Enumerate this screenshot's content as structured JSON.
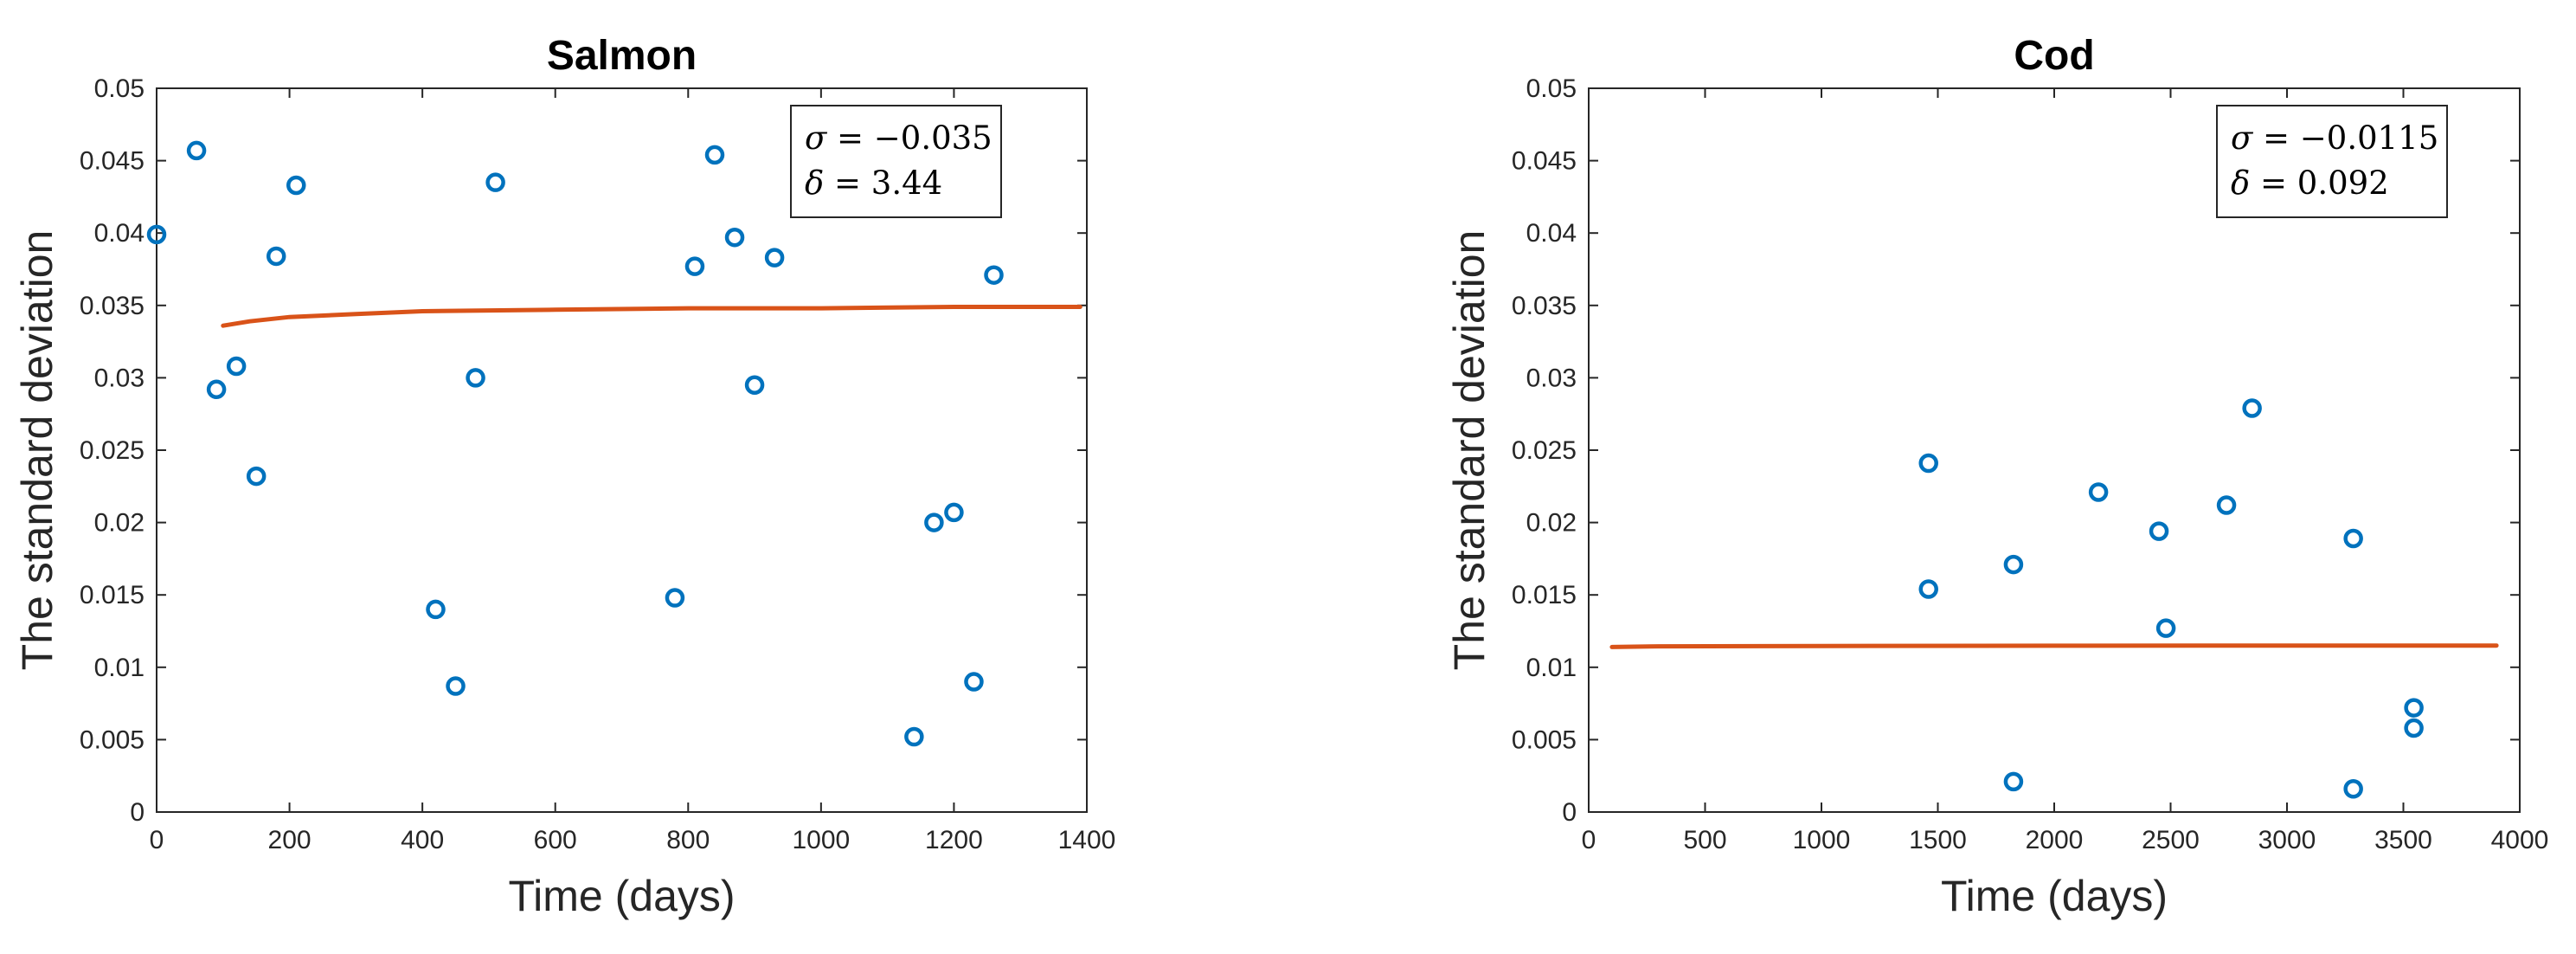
{
  "chart_data": [
    {
      "type": "scatter",
      "title": "Salmon",
      "xlabel": "Time (days)",
      "ylabel": "The standard deviation",
      "xlim": [
        0,
        1400
      ],
      "ylim": [
        0,
        0.05
      ],
      "xticks": [
        0,
        200,
        400,
        600,
        800,
        1000,
        1200,
        1400
      ],
      "yticks": [
        0,
        0.005,
        0.01,
        0.015,
        0.02,
        0.025,
        0.03,
        0.035,
        0.04,
        0.045,
        0.05
      ],
      "xtick_labels": [
        "0",
        "200",
        "400",
        "600",
        "800",
        "1000",
        "1200",
        "1400"
      ],
      "ytick_labels": [
        "0",
        "0.005",
        "0.01",
        "0.015",
        "0.02",
        "0.025",
        "0.03",
        "0.035",
        "0.04",
        "0.045",
        "0.05"
      ],
      "grid": false,
      "points": [
        {
          "x": 0,
          "y": 0.0399
        },
        {
          "x": 60,
          "y": 0.0457
        },
        {
          "x": 90,
          "y": 0.0292
        },
        {
          "x": 120,
          "y": 0.0308
        },
        {
          "x": 150,
          "y": 0.0232
        },
        {
          "x": 180,
          "y": 0.0384
        },
        {
          "x": 210,
          "y": 0.0433
        },
        {
          "x": 420,
          "y": 0.014
        },
        {
          "x": 450,
          "y": 0.0087
        },
        {
          "x": 480,
          "y": 0.03
        },
        {
          "x": 510,
          "y": 0.0435
        },
        {
          "x": 780,
          "y": 0.0148
        },
        {
          "x": 810,
          "y": 0.0377
        },
        {
          "x": 840,
          "y": 0.0454
        },
        {
          "x": 870,
          "y": 0.0397
        },
        {
          "x": 900,
          "y": 0.0295
        },
        {
          "x": 930,
          "y": 0.0383
        },
        {
          "x": 1140,
          "y": 0.0052
        },
        {
          "x": 1170,
          "y": 0.02
        },
        {
          "x": 1200,
          "y": 0.0207
        },
        {
          "x": 1230,
          "y": 0.009
        },
        {
          "x": 1260,
          "y": 0.0371
        }
      ],
      "fit_curve": [
        {
          "x": 100,
          "y": 0.0336
        },
        {
          "x": 140,
          "y": 0.0339
        },
        {
          "x": 200,
          "y": 0.0342
        },
        {
          "x": 300,
          "y": 0.0344
        },
        {
          "x": 400,
          "y": 0.0346
        },
        {
          "x": 600,
          "y": 0.0347
        },
        {
          "x": 800,
          "y": 0.0348
        },
        {
          "x": 1000,
          "y": 0.0348
        },
        {
          "x": 1200,
          "y": 0.0349
        },
        {
          "x": 1390,
          "y": 0.0349
        }
      ],
      "annotation": {
        "line1_sym": "σ",
        "line1_val": " = −0.035",
        "line2_sym": "δ",
        "line2_val": " = 3.44"
      },
      "colors": {
        "points": "#0072BD",
        "fit": "#D95319"
      }
    },
    {
      "type": "scatter",
      "title": "Cod",
      "xlabel": "Time (days)",
      "ylabel": "The standard deviation",
      "xlim": [
        0,
        4000
      ],
      "ylim": [
        0,
        0.05
      ],
      "xticks": [
        0,
        500,
        1000,
        1500,
        2000,
        2500,
        3000,
        3500,
        4000
      ],
      "yticks": [
        0,
        0.005,
        0.01,
        0.015,
        0.02,
        0.025,
        0.03,
        0.035,
        0.04,
        0.045,
        0.05
      ],
      "xtick_labels": [
        "0",
        "500",
        "1000",
        "1500",
        "2000",
        "2500",
        "3000",
        "3500",
        "4000"
      ],
      "ytick_labels": [
        "0",
        "0.005",
        "0.01",
        "0.015",
        "0.02",
        "0.025",
        "0.03",
        "0.035",
        "0.04",
        "0.045",
        "0.05"
      ],
      "grid": false,
      "points": [
        {
          "x": 1460,
          "y": 0.0241
        },
        {
          "x": 1460,
          "y": 0.0154
        },
        {
          "x": 1825,
          "y": 0.0171
        },
        {
          "x": 1825,
          "y": 0.0021
        },
        {
          "x": 2190,
          "y": 0.0221
        },
        {
          "x": 2450,
          "y": 0.0194
        },
        {
          "x": 2480,
          "y": 0.0127
        },
        {
          "x": 2740,
          "y": 0.0212
        },
        {
          "x": 2850,
          "y": 0.0279
        },
        {
          "x": 3285,
          "y": 0.0189
        },
        {
          "x": 3285,
          "y": 0.0016
        },
        {
          "x": 3545,
          "y": 0.0072
        },
        {
          "x": 3545,
          "y": 0.0058
        }
      ],
      "fit_curve": [
        {
          "x": 100,
          "y": 0.0114
        },
        {
          "x": 300,
          "y": 0.01145
        },
        {
          "x": 1000,
          "y": 0.01147
        },
        {
          "x": 2000,
          "y": 0.01149
        },
        {
          "x": 3000,
          "y": 0.0115
        },
        {
          "x": 3900,
          "y": 0.0115
        }
      ],
      "annotation": {
        "line1_sym": "σ",
        "line1_val": " = −0.0115",
        "line2_sym": "δ",
        "line2_val": " = 0.092"
      },
      "colors": {
        "points": "#0072BD",
        "fit": "#D95319"
      }
    }
  ]
}
